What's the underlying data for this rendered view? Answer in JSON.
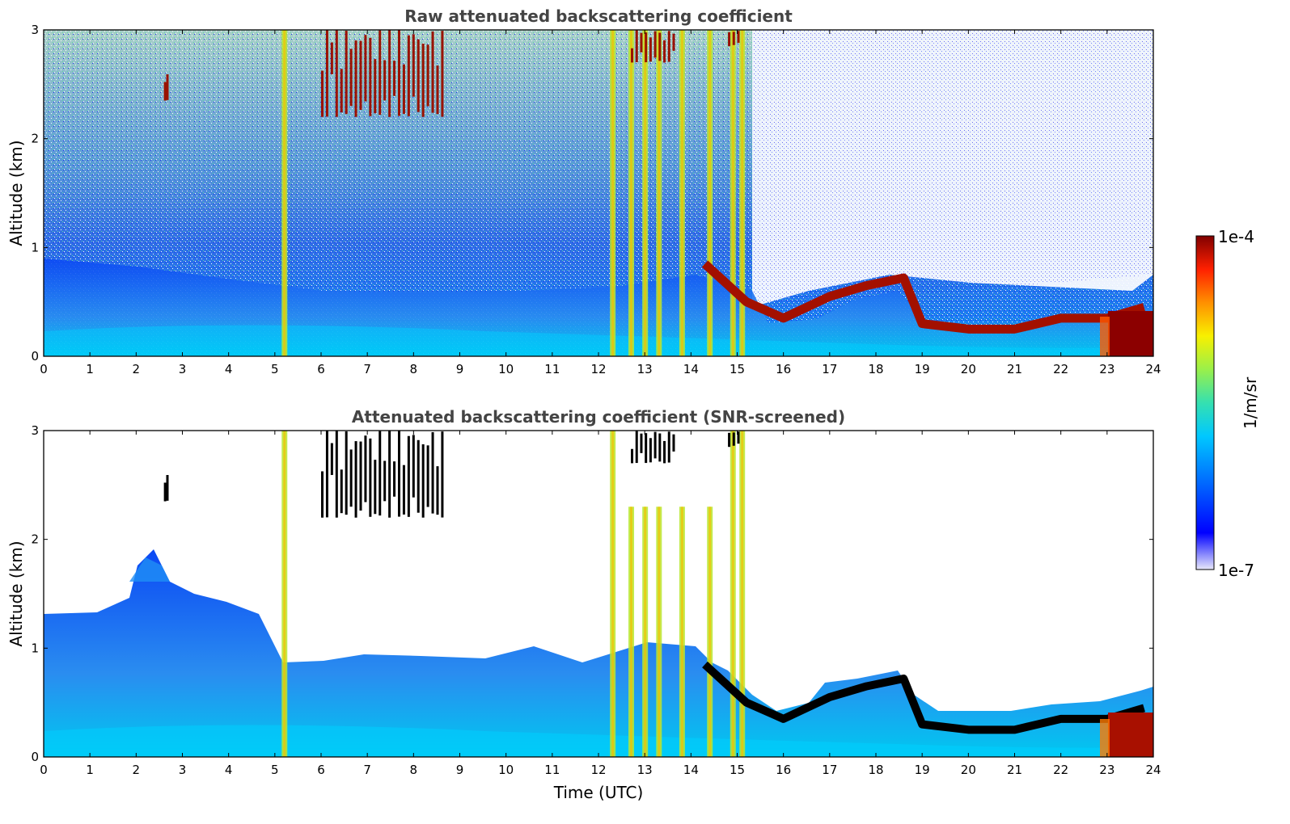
{
  "chart_data": [
    {
      "type": "heatmap",
      "title": "Raw attenuated backscattering coefficient",
      "xlabel": "",
      "ylabel": "Altitude (km)",
      "xlim": [
        0,
        24
      ],
      "ylim": [
        0,
        3
      ],
      "x_ticks": [
        "0",
        "1",
        "2",
        "3",
        "4",
        "5",
        "6",
        "7",
        "8",
        "9",
        "10",
        "11",
        "12",
        "13",
        "14",
        "15",
        "16",
        "17",
        "18",
        "19",
        "20",
        "21",
        "22",
        "23",
        "24"
      ],
      "y_ticks": [
        "0",
        "1",
        "2",
        "3"
      ],
      "colorscale": "jet",
      "screening": "none",
      "boundary_layer_top_km": {
        "time_h": [
          0,
          2,
          4,
          6,
          8,
          10,
          12,
          14.3,
          15.2,
          16,
          17,
          17.8,
          18.6,
          19,
          20,
          21,
          22,
          23,
          23.8
        ],
        "altitude_km": [
          0.9,
          0.85,
          0.75,
          0.7,
          0.7,
          0.72,
          0.75,
          0.85,
          0.5,
          0.35,
          0.55,
          0.65,
          0.72,
          0.3,
          0.25,
          0.25,
          0.35,
          0.35,
          0.45
        ]
      },
      "vertical_plumes_time_h": [
        5.2,
        12.3,
        12.7,
        13.0,
        13.3,
        13.8,
        14.4,
        14.9,
        15.1
      ],
      "upper_cloud_fragments": [
        {
          "t_start": 6.0,
          "t_end": 8.7,
          "alt_min_km": 2.2,
          "alt_max_km": 3.0
        },
        {
          "t_start": 2.6,
          "t_end": 2.7,
          "alt_min_km": 2.35,
          "alt_max_km": 2.6
        },
        {
          "t_start": 12.7,
          "t_end": 13.7,
          "alt_min_km": 2.7,
          "alt_max_km": 3.0
        },
        {
          "t_start": 14.8,
          "t_end": 15.1,
          "alt_min_km": 2.85,
          "alt_max_km": 3.0
        }
      ]
    },
    {
      "type": "heatmap",
      "title": "Attenuated backscattering coefficient (SNR-screened)",
      "xlabel": "Time (UTC)",
      "ylabel": "Altitude (km)",
      "xlim": [
        0,
        24
      ],
      "ylim": [
        0,
        3
      ],
      "x_ticks": [
        "0",
        "1",
        "2",
        "3",
        "4",
        "5",
        "6",
        "7",
        "8",
        "9",
        "10",
        "11",
        "12",
        "13",
        "14",
        "15",
        "16",
        "17",
        "18",
        "19",
        "20",
        "21",
        "22",
        "23",
        "24"
      ],
      "y_ticks": [
        "0",
        "1",
        "2",
        "3"
      ],
      "colorscale": "jet",
      "screening": "SNR",
      "masked_color": "#ffffff",
      "saturated_color": "#000000"
    }
  ],
  "colorbar": {
    "label": "1/m/sr",
    "max_label": "1e-4",
    "min_label": "1e-7",
    "vmin": 1e-07,
    "vmax": 0.0001,
    "stops": [
      "#e8e8fa",
      "#0000ff",
      "#0077ff",
      "#00c8ff",
      "#35e0b0",
      "#9af04a",
      "#f8f000",
      "#ff9000",
      "#ff2000",
      "#800000"
    ]
  }
}
